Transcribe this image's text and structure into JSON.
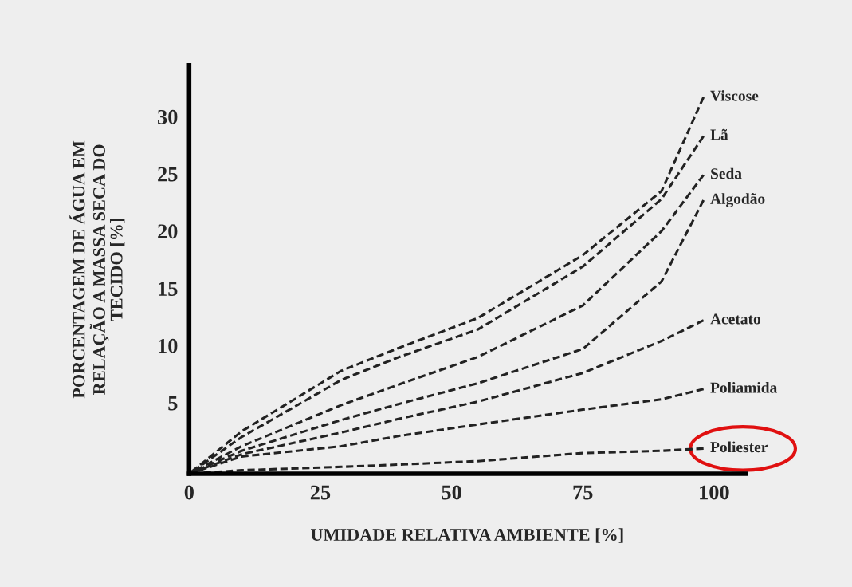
{
  "chart_data": {
    "type": "line",
    "xlabel": "UMIDADE RELATIVA AMBIENTE [%]",
    "ylabel": "PORCENTAGEM DE ÁGUA EM\nRELAÇÃO A MASSA SECA DO\nTECIDO [%]",
    "x": [
      0,
      10,
      29,
      40,
      55,
      75,
      90,
      98
    ],
    "series": [
      {
        "name": "Viscose",
        "color": "#222222",
        "values": [
          -1.2,
          2.5,
          7.8,
          9.8,
          12.4,
          17.9,
          23.5,
          31.7
        ]
      },
      {
        "name": "Lã",
        "color": "#222222",
        "values": [
          -1.2,
          2.0,
          7.0,
          9.0,
          11.4,
          16.9,
          22.8,
          28.3
        ]
      },
      {
        "name": "Seda",
        "color": "#222222",
        "values": [
          -1.2,
          1.2,
          4.8,
          6.6,
          9.0,
          13.5,
          20.0,
          24.9
        ]
      },
      {
        "name": "Algodão",
        "color": "#222222",
        "values": [
          -1.2,
          0.8,
          3.5,
          4.9,
          6.7,
          9.7,
          15.6,
          22.7
        ]
      },
      {
        "name": "Acetato",
        "color": "#222222",
        "values": [
          -1.2,
          0.5,
          2.4,
          3.6,
          5.1,
          7.6,
          10.4,
          12.2
        ]
      },
      {
        "name": "Poliamida",
        "color": "#222222",
        "values": [
          -1.2,
          0.3,
          1.2,
          2.1,
          3.1,
          4.4,
          5.3,
          6.2
        ]
      },
      {
        "name": "Poliester",
        "color": "#222222",
        "values": [
          -1.2,
          -0.9,
          -0.6,
          -0.4,
          -0.1,
          0.6,
          0.8,
          1.0
        ]
      }
    ],
    "xlim": [
      0,
      106
    ],
    "ylim": [
      -1.2,
      34.5
    ],
    "xticks": [
      0,
      25,
      50,
      75,
      100
    ],
    "yticks": [
      5,
      10,
      15,
      20,
      25,
      30
    ],
    "grid": false,
    "legend": false,
    "marker": "none",
    "line_style": "dashed"
  }
}
